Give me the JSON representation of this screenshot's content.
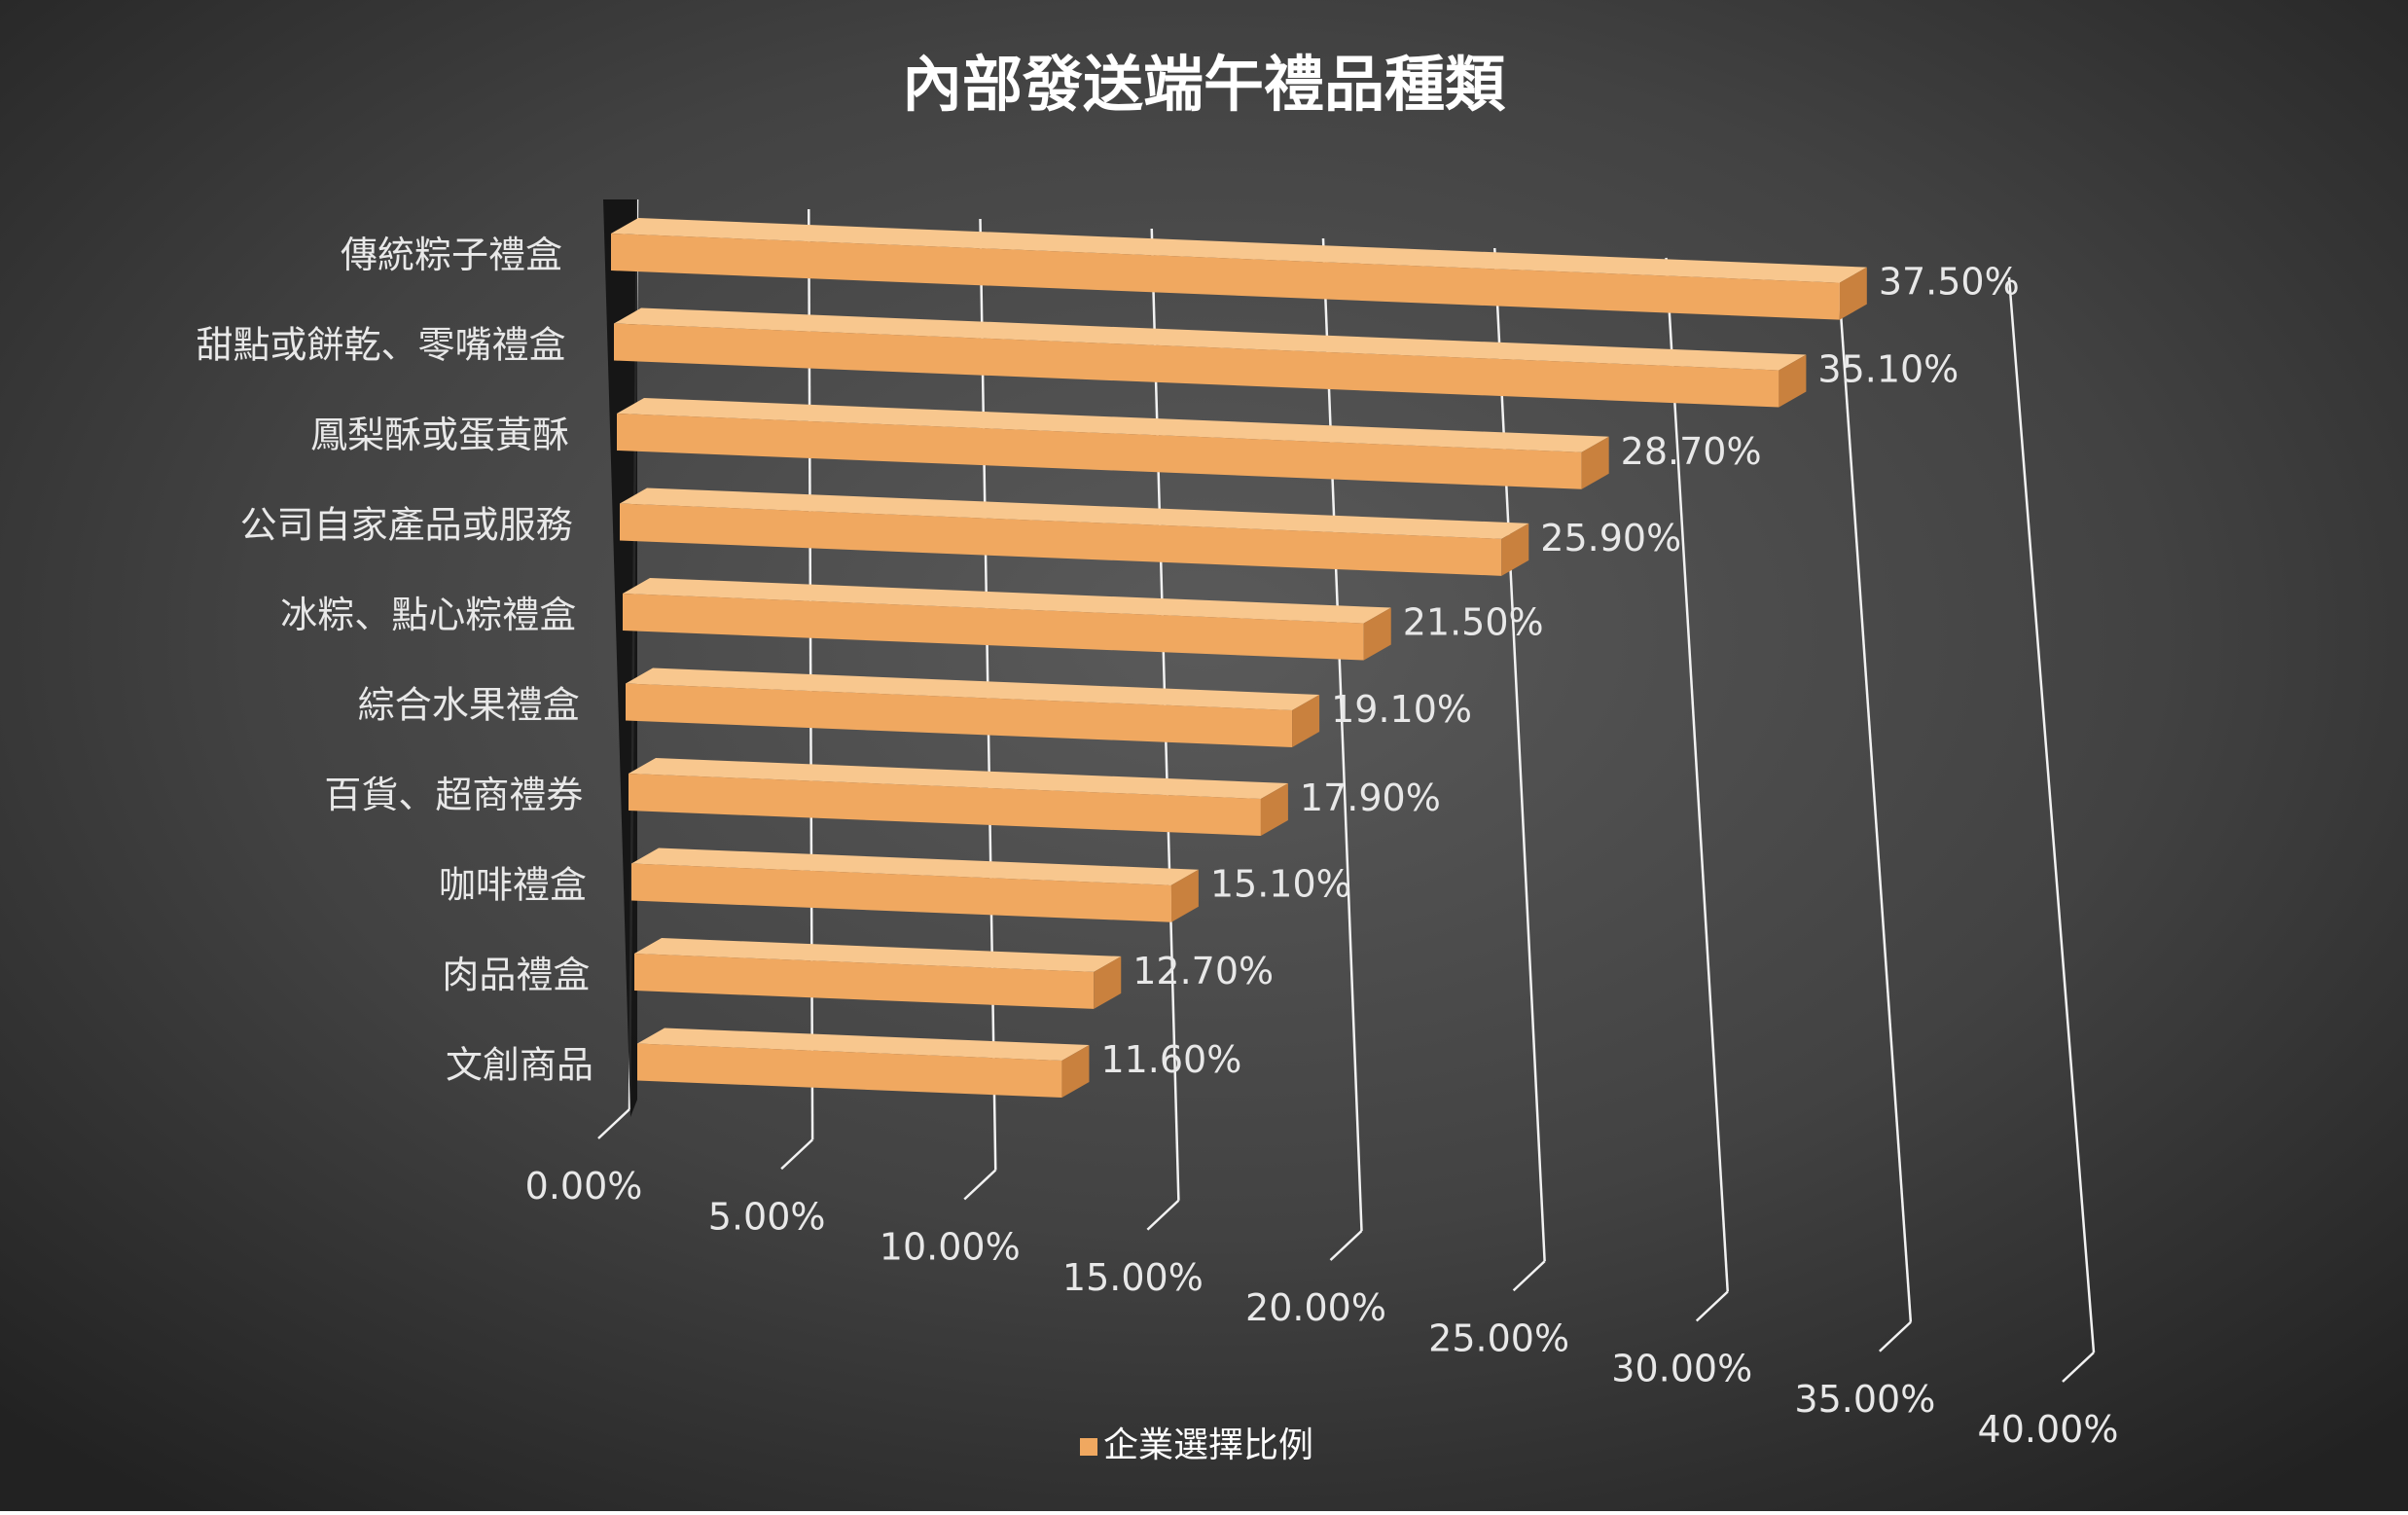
{
  "chart_data": {
    "type": "bar",
    "orientation": "horizontal",
    "title": "內部發送端午禮品種類",
    "xlabel": "",
    "ylabel": "",
    "categories": [
      "傳統粽子禮盒",
      "甜點或餅乾、零嘴禮盒",
      "鳳梨酥或蛋黃酥",
      "公司自家產品或服務",
      "冰粽、點心粽禮盒",
      "綜合水果禮盒",
      "百貨、超商禮券",
      "咖啡禮盒",
      "肉品禮盒",
      "文創商品"
    ],
    "series": [
      {
        "name": "企業選擇比例",
        "values": [
          37.5,
          35.1,
          28.7,
          25.9,
          21.5,
          19.1,
          17.9,
          15.1,
          12.7,
          11.6
        ],
        "value_labels": [
          "37.50%",
          "35.10%",
          "28.70%",
          "25.90%",
          "21.50%",
          "19.10%",
          "17.90%",
          "15.10%",
          "12.70%",
          "11.60%"
        ],
        "color": "#F0A860"
      }
    ],
    "xlim": [
      0,
      40
    ],
    "tick_values": [
      0,
      5,
      10,
      15,
      20,
      25,
      30,
      35,
      40
    ],
    "tick_labels": [
      "0.00%",
      "5.00%",
      "10.00%",
      "15.00%",
      "20.00%",
      "25.00%",
      "30.00%",
      "35.00%",
      "40.00%"
    ],
    "grid": true,
    "legend_position": "bottom",
    "style": "3d-perspective"
  },
  "colors": {
    "bar_front": "#F0A860",
    "bar_top": "#F8C78E",
    "bar_side": "#C9813E",
    "background_center": "#555555",
    "background_edge": "#262626",
    "text": "#FFFFFF",
    "label": "#E8E8E8",
    "grid": "#F2F2F2"
  }
}
